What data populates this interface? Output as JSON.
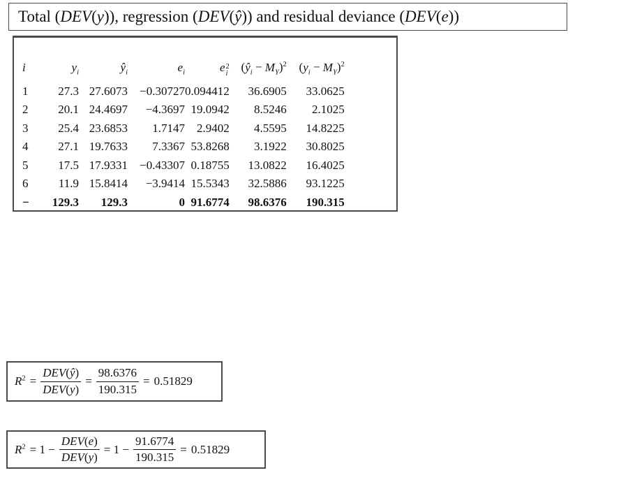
{
  "title": {
    "html": "Total (<i>DEV</i>(<i>y</i>)), regression (<i>DEV</i>(<i>ŷ</i>)) and residual deviance (<i>DEV</i>(<i>e</i>))"
  },
  "table": {
    "headers_html": [
      "<i>i</i>",
      "<i>y<sub>i</sub></i>",
      "<i>ŷ<sub>i</sub></i>",
      "<i>e<sub>i</sub></i>",
      "<i>e</i><span class='stk'><span>2</span><span><i>i</i></span></span>",
      "(<i>ŷ<sub>i</sub></i> − <i>M<sub>Y</sub></i>)<sup>2</sup>",
      "(<i>y<sub>i</sub></i> − <i>M<sub>Y</sub></i>)<sup>2</sup>"
    ],
    "rows": [
      [
        "1",
        "27.3",
        "27.6073",
        "−0.30727",
        "0.094412",
        "36.6905",
        "33.0625"
      ],
      [
        "2",
        "20.1",
        "24.4697",
        "−4.3697",
        "19.0942",
        "8.5246",
        "2.1025"
      ],
      [
        "3",
        "25.4",
        "23.6853",
        "1.7147",
        "2.9402",
        "4.5595",
        "14.8225"
      ],
      [
        "4",
        "27.1",
        "19.7633",
        "7.3367",
        "53.8268",
        "3.1922",
        "30.8025"
      ],
      [
        "5",
        "17.5",
        "17.9331",
        "−0.43307",
        "0.18755",
        "13.0822",
        "16.4025"
      ],
      [
        "6",
        "11.9",
        "15.8414",
        "−3.9414",
        "15.5343",
        "32.5886",
        "93.1225"
      ]
    ],
    "totals": [
      "−",
      "129.3",
      "129.3",
      "0",
      "91.6774",
      "98.6376",
      "190.315"
    ]
  },
  "formulas": [
    {
      "lhs_html": "<i>R</i><sup>2</sup>",
      "op1": "=",
      "num1_html": "<i>DEV</i>(<i>ŷ</i>)",
      "den1_html": "<i>DEV</i>(<i>y</i>)",
      "op2": "=",
      "num2": "98.6376",
      "den2": "190.315",
      "op3": "=",
      "result": "0.51829"
    },
    {
      "lhs_html": "<i>R</i><sup>2</sup>",
      "op1": "= 1 −",
      "num1_html": "<i>DEV</i>(<i>e</i>)",
      "den1_html": "<i>DEV</i>(<i>y</i>)",
      "op2": "= 1 −",
      "num2": "91.6774",
      "den2": "190.315",
      "op3": "=",
      "result": "0.51829"
    }
  ]
}
